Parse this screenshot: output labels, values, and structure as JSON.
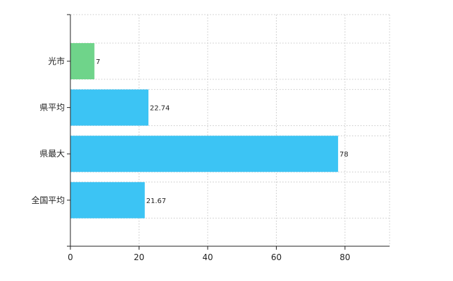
{
  "chart_data": {
    "type": "bar",
    "orientation": "horizontal",
    "title": "",
    "xlabel": "",
    "ylabel": "",
    "categories": [
      "光市",
      "県平均",
      "県最大",
      "全国平均"
    ],
    "values": [
      7,
      22.74,
      78,
      21.67
    ],
    "data_labels": [
      "7",
      "22.74",
      "78",
      "21.67"
    ],
    "bar_colors": [
      "#6fd48a",
      "#3cc4f4",
      "#3cc4f4",
      "#3cc4f4"
    ],
    "xlim": [
      0,
      93
    ],
    "x_ticks": [
      0,
      20,
      40,
      60,
      80
    ],
    "x_tick_labels": [
      "0",
      "20",
      "40",
      "60",
      "80"
    ],
    "grid": true,
    "legend": "none"
  }
}
